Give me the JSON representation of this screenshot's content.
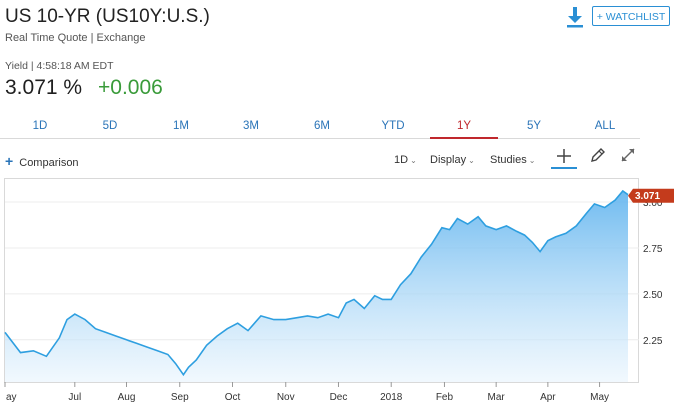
{
  "header": {
    "title": "US 10-YR (US10Y:U.S.)",
    "subtitle": "Real Time Quote | Exchange",
    "watchlist_label": "+ WATCHLIST"
  },
  "quote": {
    "yield_line": "Yield | 4:58:18 AM EDT",
    "price": "3.071 %",
    "change": "+0.006"
  },
  "tabs": [
    {
      "label": "1D"
    },
    {
      "label": "5D"
    },
    {
      "label": "1M"
    },
    {
      "label": "3M"
    },
    {
      "label": "6M"
    },
    {
      "label": "YTD"
    },
    {
      "label": "1Y",
      "active": true
    },
    {
      "label": "5Y"
    },
    {
      "label": "ALL"
    }
  ],
  "toolbar": {
    "comparison_label": "Comparison",
    "interval_label": "1D",
    "display_label": "Display",
    "studies_label": "Studies",
    "icons": [
      "plus-crosshair-icon",
      "pencil-icon",
      "expand-icon",
      "download-icon"
    ]
  },
  "colors": {
    "accent": "#2a8fd4",
    "active_tab": "#c0282d",
    "up": "#3a9b3a",
    "line": "#2e9fe0",
    "badge": "#c43b1c"
  },
  "chart_data": {
    "type": "area",
    "current_value": "3.071",
    "ylim": [
      2.02,
      3.12
    ],
    "xlim": [
      0,
      12.05
    ],
    "yticks": [
      {
        "value": 3.0,
        "label": "3.00"
      },
      {
        "value": 2.75,
        "label": "2.75"
      },
      {
        "value": 2.5,
        "label": "2.50"
      },
      {
        "value": 2.25,
        "label": "2.25"
      }
    ],
    "xticks": [
      {
        "value": 0,
        "label": "ay"
      },
      {
        "value": 1.35,
        "label": "Jul"
      },
      {
        "value": 2.35,
        "label": "Aug"
      },
      {
        "value": 3.38,
        "label": "Sep"
      },
      {
        "value": 4.4,
        "label": "Oct"
      },
      {
        "value": 5.43,
        "label": "Nov"
      },
      {
        "value": 6.45,
        "label": "Dec"
      },
      {
        "value": 7.47,
        "label": "2018"
      },
      {
        "value": 8.5,
        "label": "Feb"
      },
      {
        "value": 9.5,
        "label": "Mar"
      },
      {
        "value": 10.5,
        "label": "Apr"
      },
      {
        "value": 11.5,
        "label": "May"
      }
    ],
    "series": [
      {
        "x": [
          0,
          0.3,
          0.55,
          0.8,
          1.05,
          1.2,
          1.35,
          1.55,
          1.75,
          1.95,
          2.15,
          2.35,
          2.55,
          2.75,
          2.95,
          3.15,
          3.3,
          3.45,
          3.55,
          3.7,
          3.9,
          4.1,
          4.3,
          4.5,
          4.7,
          4.95,
          5.2,
          5.43,
          5.65,
          5.85,
          6.05,
          6.25,
          6.45,
          6.6,
          6.75,
          6.95,
          7.15,
          7.3,
          7.47,
          7.65,
          7.85,
          8.05,
          8.25,
          8.45,
          8.6,
          8.75,
          8.95,
          9.15,
          9.3,
          9.5,
          9.7,
          9.9,
          10.05,
          10.2,
          10.35,
          10.5,
          10.65,
          10.85,
          11.05,
          11.25,
          11.4,
          11.6,
          11.8,
          11.95,
          12.05
        ],
        "y": [
          2.29,
          2.18,
          2.19,
          2.16,
          2.26,
          2.36,
          2.39,
          2.36,
          2.31,
          2.29,
          2.27,
          2.25,
          2.23,
          2.21,
          2.19,
          2.17,
          2.12,
          2.06,
          2.1,
          2.14,
          2.22,
          2.27,
          2.31,
          2.34,
          2.3,
          2.38,
          2.36,
          2.36,
          2.37,
          2.38,
          2.37,
          2.39,
          2.37,
          2.45,
          2.47,
          2.42,
          2.49,
          2.47,
          2.47,
          2.55,
          2.61,
          2.7,
          2.77,
          2.86,
          2.85,
          2.91,
          2.88,
          2.92,
          2.87,
          2.85,
          2.87,
          2.84,
          2.82,
          2.78,
          2.73,
          2.79,
          2.81,
          2.83,
          2.87,
          2.94,
          2.99,
          2.97,
          3.01,
          3.06,
          3.04
        ]
      }
    ]
  }
}
